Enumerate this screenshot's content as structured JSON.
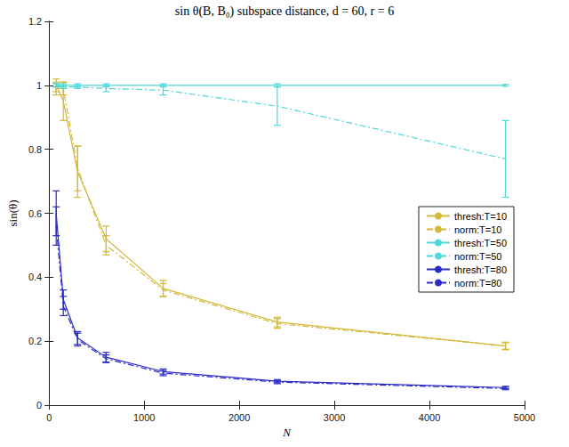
{
  "chart_data": {
    "type": "line",
    "title": "sin θ(B, B₀) subspace distance, d = 60, r = 6",
    "x_label": "N",
    "y_label": "sin(θ)",
    "xlim": [
      0,
      5000
    ],
    "xticks": [
      0,
      1000,
      2000,
      3000,
      4000,
      5000
    ],
    "ylim": [
      0,
      1.2
    ],
    "yticks": [
      0,
      0.2,
      0.4,
      0.6,
      0.8,
      1,
      1.2
    ],
    "grid": false,
    "legend": "right",
    "x": [
      75,
      150,
      300,
      600,
      1200,
      2400,
      4800
    ],
    "series": [
      {
        "name": "thresh:T=10",
        "color": "#d4b83a",
        "line_style": "solid",
        "values": [
          1.0,
          0.95,
          0.73,
          0.52,
          0.365,
          0.26,
          0.185
        ],
        "errors": [
          0.02,
          0.06,
          0.08,
          0.04,
          0.025,
          0.015,
          0.012
        ]
      },
      {
        "name": "norm:T=10",
        "color": "#d4b83a",
        "line_style": "dashdot",
        "values": [
          0.99,
          0.99,
          0.74,
          0.5,
          0.36,
          0.255,
          0.185
        ],
        "errors": [
          0.02,
          0.02,
          0.07,
          0.03,
          0.02,
          0.015,
          0.01
        ]
      },
      {
        "name": "thresh:T=50",
        "color": "#4fd8d8",
        "line_style": "solid",
        "values": [
          1.0,
          1.0,
          1.0,
          1.0,
          1.0,
          1.0,
          1.0
        ],
        "errors": [
          0.005,
          0.005,
          0.005,
          0.005,
          0.005,
          0.005,
          0.003
        ]
      },
      {
        "name": "norm:T=50",
        "color": "#4fd8d8",
        "line_style": "dashdot",
        "values": [
          1.0,
          0.995,
          0.995,
          0.99,
          0.985,
          0.935,
          0.77
        ],
        "errors": [
          0.005,
          0.005,
          0.005,
          0.01,
          0.015,
          0.06,
          0.12
        ]
      },
      {
        "name": "thresh:T=80",
        "color": "#2a2ac8",
        "line_style": "solid",
        "values": [
          0.6,
          0.33,
          0.21,
          0.15,
          0.105,
          0.075,
          0.055
        ],
        "errors": [
          0.07,
          0.03,
          0.02,
          0.015,
          0.008,
          0.005,
          0.004
        ]
      },
      {
        "name": "norm:T=80",
        "color": "#2a2ac8",
        "line_style": "dashdot",
        "values": [
          0.56,
          0.31,
          0.205,
          0.145,
          0.1,
          0.072,
          0.052
        ],
        "errors": [
          0.06,
          0.03,
          0.02,
          0.012,
          0.008,
          0.005,
          0.004
        ]
      }
    ]
  }
}
